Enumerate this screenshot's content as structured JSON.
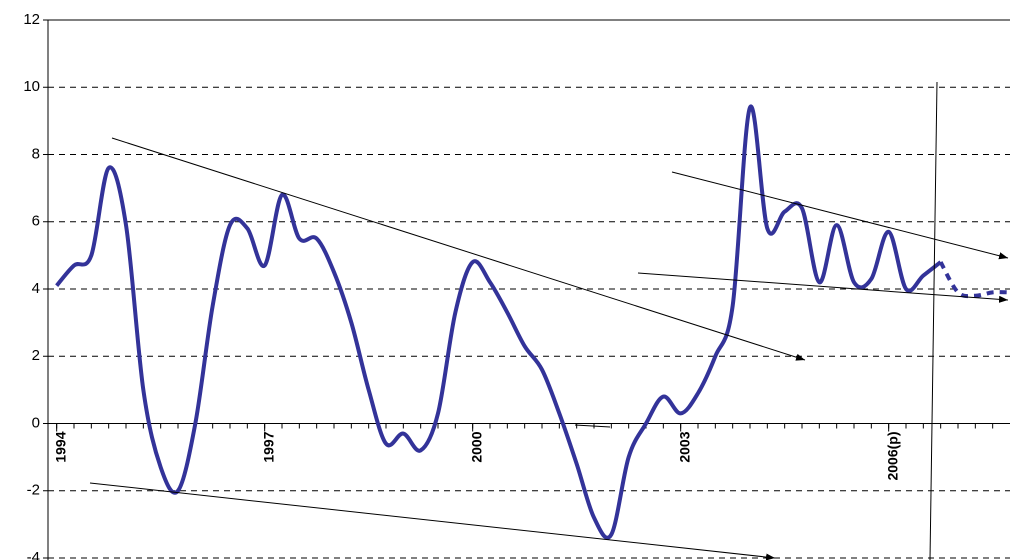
{
  "chart_data": {
    "type": "line",
    "x": [
      1994,
      1994.25,
      1994.5,
      1994.75,
      1995,
      1995.25,
      1995.5,
      1995.75,
      1996,
      1996.25,
      1996.5,
      1996.75,
      1997,
      1997.25,
      1997.5,
      1997.75,
      1998,
      1998.25,
      1998.5,
      1998.75,
      1999,
      1999.25,
      1999.5,
      1999.75,
      2000,
      2000.25,
      2000.5,
      2000.75,
      2001,
      2001.25,
      2001.5,
      2001.75,
      2002,
      2002.25,
      2002.5,
      2002.75,
      2003,
      2003.25,
      2003.5,
      2003.75,
      2004,
      2004.25,
      2004.5,
      2004.75,
      2005,
      2005.25,
      2005.5,
      2005.75,
      2006,
      2006.25,
      2006.5,
      2006.75,
      2007,
      2007.25,
      2007.5,
      2007.75
    ],
    "series": [
      {
        "color": "#333399",
        "line_style": "solid",
        "values": [
          4.1,
          4.7,
          5.0,
          7.6,
          5.9,
          1.0,
          -1.3,
          -2.0,
          0.0,
          3.5,
          5.9,
          5.8,
          4.7,
          6.8,
          5.5,
          5.5,
          4.5,
          3.0,
          1.0,
          -0.6,
          -0.3,
          -0.8,
          0.3,
          3.3,
          4.8,
          4.2,
          3.3,
          2.3,
          1.6,
          0.3,
          -1.2,
          -2.8,
          -3.3,
          -1.0,
          0.0,
          0.8,
          0.3,
          0.9,
          2.0,
          3.5,
          9.4,
          5.8,
          6.3,
          6.4,
          4.2,
          5.9,
          4.2,
          4.3,
          5.7,
          4.0,
          4.4,
          4.8,
          null,
          null,
          null,
          null
        ]
      },
      {
        "color": "#333399",
        "line_style": "dashed",
        "values": [
          null,
          null,
          null,
          null,
          null,
          null,
          null,
          null,
          null,
          null,
          null,
          null,
          null,
          null,
          null,
          null,
          null,
          null,
          null,
          null,
          null,
          null,
          null,
          null,
          null,
          null,
          null,
          null,
          null,
          null,
          null,
          null,
          null,
          null,
          null,
          null,
          null,
          null,
          null,
          null,
          null,
          null,
          null,
          null,
          null,
          null,
          null,
          null,
          null,
          null,
          null,
          4.8,
          3.9,
          3.8,
          3.9,
          3.9
        ]
      }
    ],
    "xlim": [
      1993.875,
      2007.75
    ],
    "xticks": [
      1994,
      1997,
      2000,
      2003,
      {
        "value": 2006,
        "label": "2006(p)"
      }
    ],
    "ylim": [
      -4,
      12
    ],
    "yticks": [
      -4,
      -2,
      0,
      2,
      4,
      6,
      8,
      10,
      12
    ],
    "grid": true
  }
}
